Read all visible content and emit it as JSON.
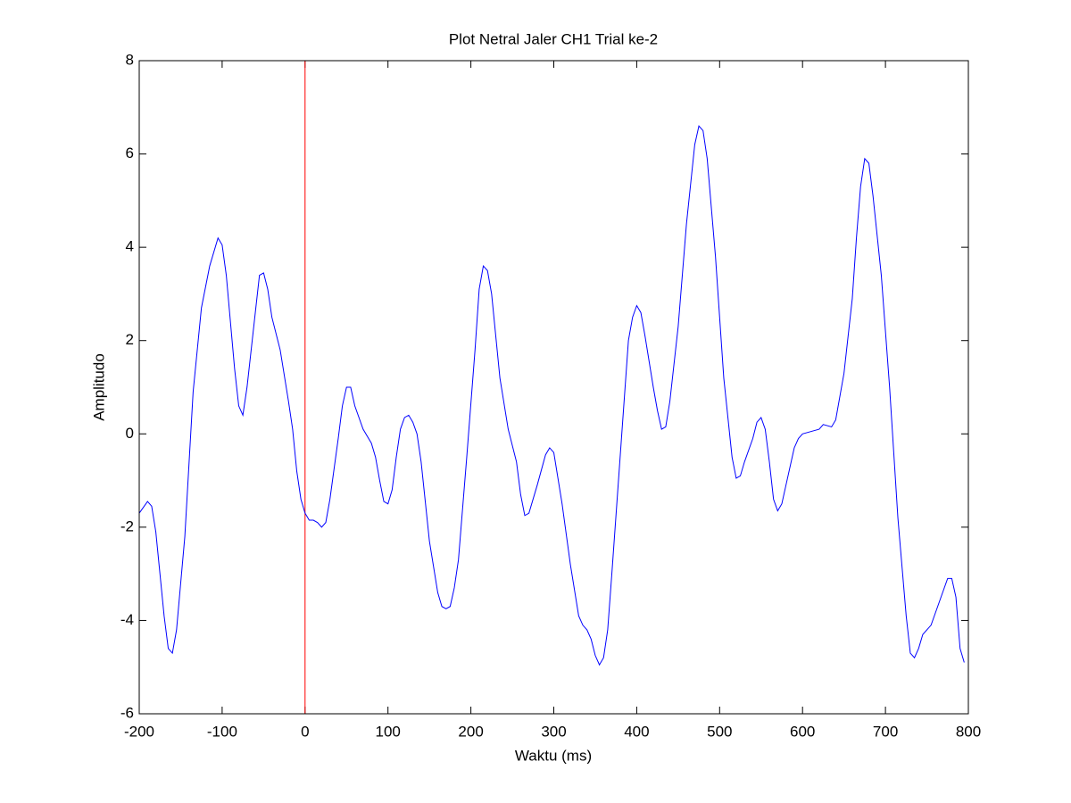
{
  "chart_data": {
    "type": "line",
    "title": "Plot Netral Jaler CH1 Trial ke-2",
    "xlabel": "Waktu (ms)",
    "ylabel": "Amplitudo",
    "x": [
      -200,
      -190,
      -185,
      -180,
      -170,
      -165,
      -160,
      -155,
      -145,
      -135,
      -125,
      -115,
      -105,
      -100,
      -95,
      -85,
      -80,
      -75,
      -70,
      -60,
      -55,
      -50,
      -45,
      -40,
      -30,
      -20,
      -15,
      -10,
      -5,
      0,
      5,
      10,
      15,
      20,
      25,
      30,
      40,
      45,
      50,
      55,
      60,
      70,
      80,
      85,
      90,
      95,
      100,
      105,
      110,
      115,
      120,
      125,
      130,
      135,
      140,
      150,
      160,
      165,
      170,
      175,
      180,
      185,
      195,
      205,
      210,
      215,
      220,
      225,
      235,
      245,
      255,
      260,
      265,
      270,
      280,
      290,
      295,
      300,
      310,
      320,
      330,
      335,
      340,
      345,
      350,
      355,
      360,
      365,
      370,
      380,
      390,
      395,
      400,
      405,
      410,
      420,
      425,
      430,
      435,
      440,
      450,
      460,
      470,
      475,
      480,
      485,
      495,
      505,
      515,
      520,
      525,
      530,
      540,
      545,
      550,
      555,
      560,
      565,
      570,
      575,
      580,
      590,
      595,
      600,
      610,
      620,
      625,
      635,
      640,
      650,
      660,
      665,
      670,
      675,
      680,
      685,
      695,
      705,
      715,
      725,
      730,
      735,
      740,
      745,
      755,
      765,
      775,
      780,
      785,
      790,
      795
    ],
    "series": [
      {
        "color": "#0000ff",
        "values": [
          -1.7,
          -1.45,
          -1.55,
          -2.1,
          -3.9,
          -4.6,
          -4.7,
          -4.2,
          -2.2,
          0.9,
          2.7,
          3.6,
          4.2,
          4.05,
          3.4,
          1.4,
          0.6,
          0.4,
          1.0,
          2.6,
          3.4,
          3.45,
          3.1,
          2.5,
          1.8,
          0.7,
          0.1,
          -0.8,
          -1.4,
          -1.7,
          -1.85,
          -1.85,
          -1.9,
          -2.0,
          -1.9,
          -1.4,
          -0.1,
          0.6,
          1.0,
          1.0,
          0.6,
          0.1,
          -0.2,
          -0.5,
          -1.0,
          -1.45,
          -1.5,
          -1.2,
          -0.5,
          0.1,
          0.35,
          0.4,
          0.25,
          0.0,
          -0.6,
          -2.3,
          -3.4,
          -3.7,
          -3.75,
          -3.7,
          -3.3,
          -2.7,
          -0.5,
          1.8,
          3.1,
          3.6,
          3.5,
          3.0,
          1.2,
          0.1,
          -0.6,
          -1.3,
          -1.75,
          -1.7,
          -1.1,
          -0.45,
          -0.3,
          -0.4,
          -1.5,
          -2.8,
          -3.9,
          -4.1,
          -4.2,
          -4.4,
          -4.75,
          -4.95,
          -4.8,
          -4.2,
          -3.0,
          -0.5,
          2.0,
          2.5,
          2.75,
          2.6,
          2.1,
          1.0,
          0.5,
          0.1,
          0.15,
          0.7,
          2.3,
          4.5,
          6.2,
          6.6,
          6.5,
          5.9,
          3.8,
          1.2,
          -0.5,
          -0.95,
          -0.9,
          -0.6,
          -0.1,
          0.25,
          0.35,
          0.1,
          -0.6,
          -1.4,
          -1.65,
          -1.5,
          -1.1,
          -0.3,
          -0.1,
          0.0,
          0.05,
          0.1,
          0.2,
          0.15,
          0.3,
          1.3,
          2.9,
          4.2,
          5.3,
          5.9,
          5.8,
          5.1,
          3.4,
          1.0,
          -1.8,
          -3.9,
          -4.7,
          -4.8,
          -4.6,
          -4.3,
          -4.1,
          -3.6,
          -3.1,
          -3.1,
          -3.5,
          -4.6,
          -4.9
        ]
      }
    ],
    "vline": {
      "x": 0,
      "color": "#ff0000"
    },
    "xlim": [
      -200,
      800
    ],
    "xticks": [
      -200,
      -100,
      0,
      100,
      200,
      300,
      400,
      500,
      600,
      700,
      800
    ],
    "ylim": [
      -6,
      8
    ],
    "yticks": [
      -6,
      -4,
      -2,
      0,
      2,
      4,
      6,
      8
    ]
  }
}
